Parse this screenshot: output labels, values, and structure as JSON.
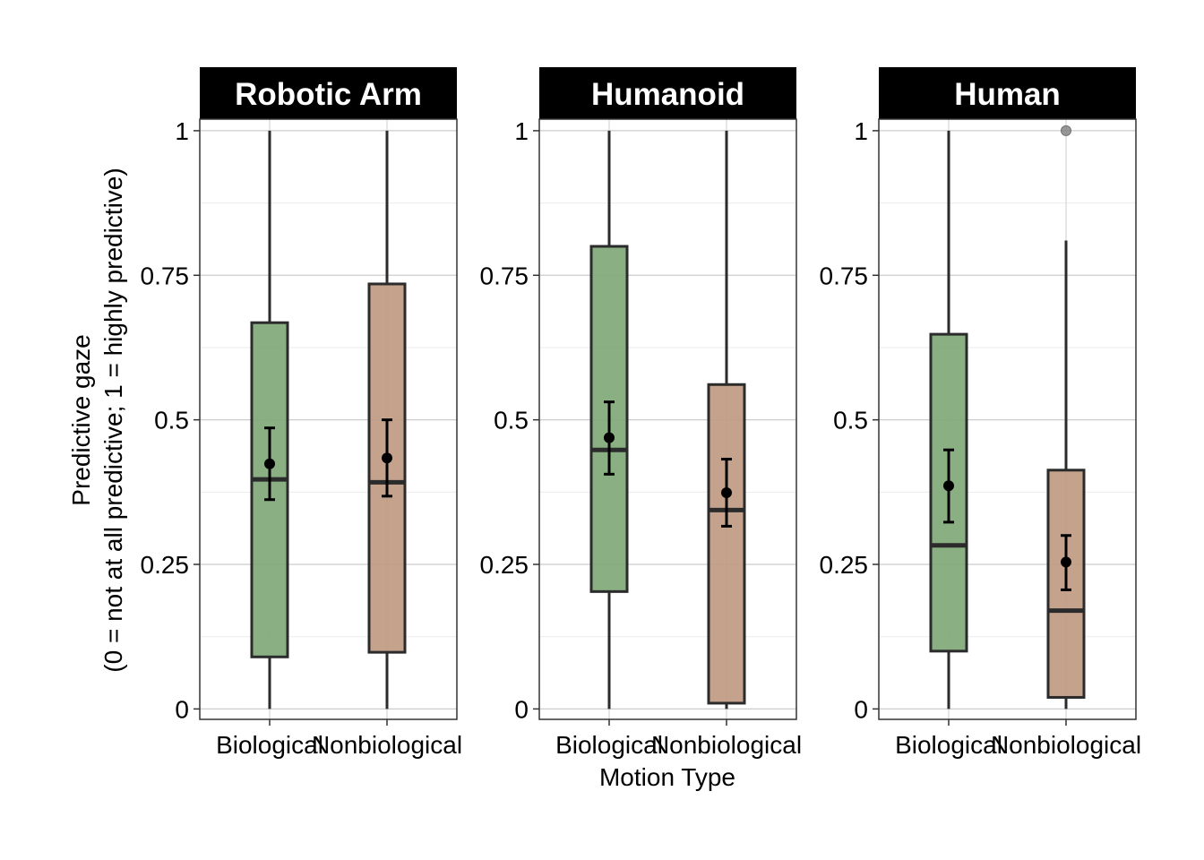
{
  "chart_data": {
    "type": "box",
    "ylabel_lines": [
      "Predictive gaze",
      "(0 = not at all predictive; 1 = highly predictive)"
    ],
    "xlabel": "Motion Type",
    "categories": [
      "Biological",
      "Nonbiological"
    ],
    "ylim": [
      -0.018,
      1.02
    ],
    "y_ticks": [
      0,
      0.25,
      0.5,
      0.75,
      1
    ],
    "y_tick_labels": [
      "0",
      "0.25",
      "0.5",
      "0.75",
      "1"
    ],
    "grid": true,
    "colors": {
      "Biological": "#7fa878",
      "Nonbiological": "#bf9a82"
    },
    "panels": [
      {
        "title": "Robotic Arm",
        "boxes": [
          {
            "category": "Biological",
            "whisker_low": 0,
            "q1": 0.09,
            "median": 0.397,
            "q3": 0.668,
            "whisker_high": 1,
            "mean": 0.424,
            "se_low": 0.362,
            "se_high": 0.486,
            "outliers": []
          },
          {
            "category": "Nonbiological",
            "whisker_low": 0,
            "q1": 0.098,
            "median": 0.392,
            "q3": 0.735,
            "whisker_high": 1,
            "mean": 0.434,
            "se_low": 0.368,
            "se_high": 0.5,
            "outliers": []
          }
        ]
      },
      {
        "title": "Humanoid",
        "boxes": [
          {
            "category": "Biological",
            "whisker_low": 0,
            "q1": 0.203,
            "median": 0.448,
            "q3": 0.8,
            "whisker_high": 1,
            "mean": 0.469,
            "se_low": 0.406,
            "se_high": 0.531,
            "outliers": []
          },
          {
            "category": "Nonbiological",
            "whisker_low": 0,
            "q1": 0.01,
            "median": 0.344,
            "q3": 0.561,
            "whisker_high": 1,
            "mean": 0.374,
            "se_low": 0.316,
            "se_high": 0.432,
            "outliers": []
          }
        ]
      },
      {
        "title": "Human",
        "boxes": [
          {
            "category": "Biological",
            "whisker_low": 0,
            "q1": 0.1,
            "median": 0.283,
            "q3": 0.648,
            "whisker_high": 1,
            "mean": 0.386,
            "se_low": 0.323,
            "se_high": 0.448,
            "outliers": []
          },
          {
            "category": "Nonbiological",
            "whisker_low": 0,
            "q1": 0.02,
            "median": 0.17,
            "q3": 0.413,
            "whisker_high": 0.81,
            "mean": 0.254,
            "se_low": 0.206,
            "se_high": 0.3,
            "outliers": [
              1
            ]
          }
        ]
      }
    ]
  }
}
